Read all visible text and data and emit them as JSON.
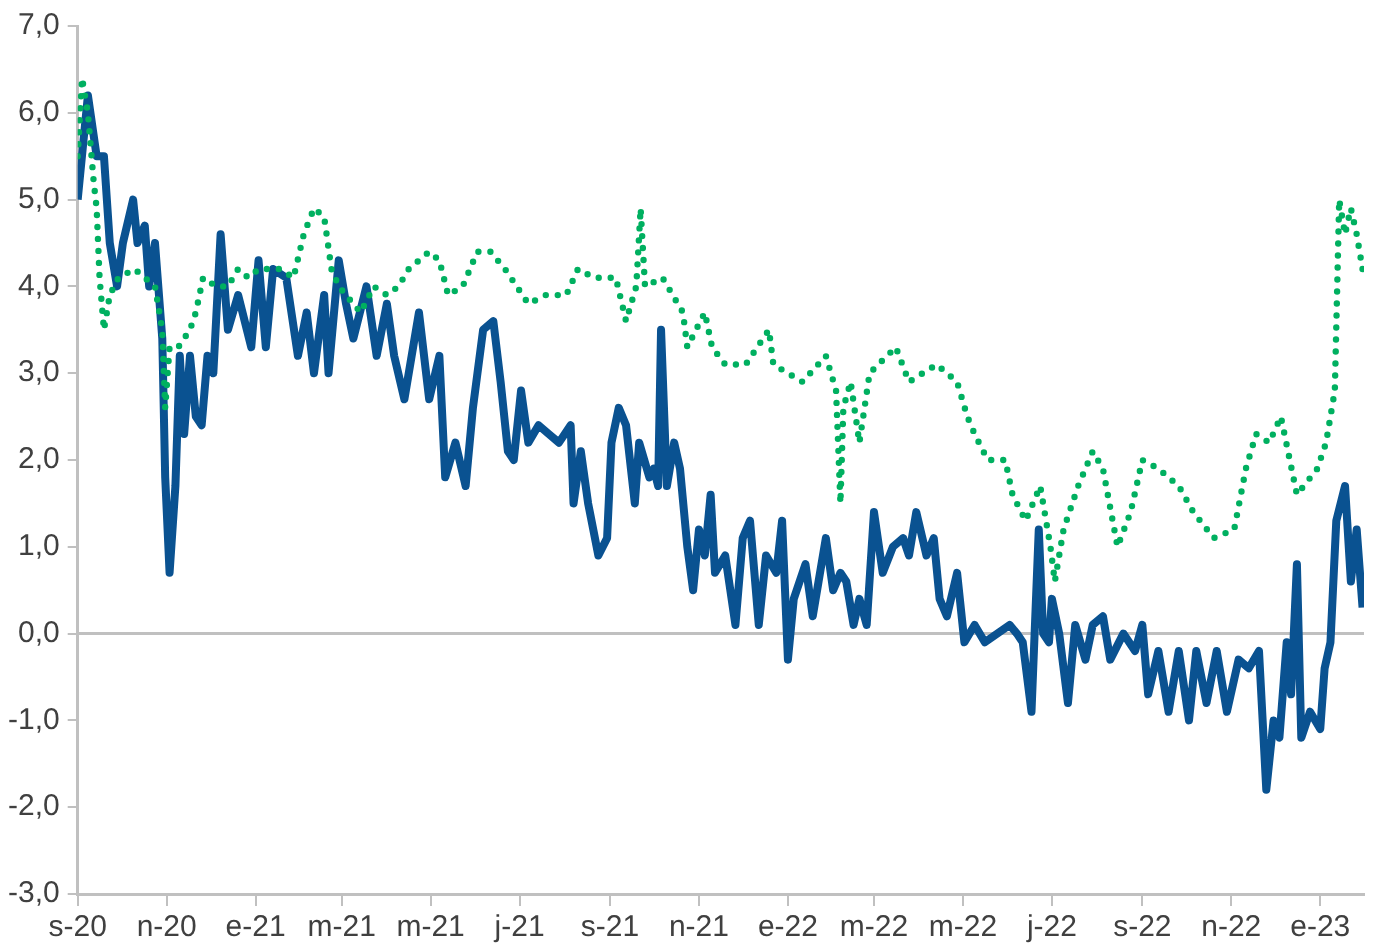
{
  "chart_data": {
    "type": "line",
    "marker": "none",
    "grid": false,
    "xlim": [
      "2020-09-01",
      "2023-01-31"
    ],
    "xticks": [
      {
        "value": "2020-09-01",
        "label": "s-20"
      },
      {
        "value": "2020-11-01",
        "label": "n-20"
      },
      {
        "value": "2021-01-01",
        "label": "e-21"
      },
      {
        "value": "2021-03-01",
        "label": "m-21"
      },
      {
        "value": "2021-05-01",
        "label": "m-21"
      },
      {
        "value": "2021-07-01",
        "label": "j-21"
      },
      {
        "value": "2021-09-01",
        "label": "s-21"
      },
      {
        "value": "2021-11-01",
        "label": "n-21"
      },
      {
        "value": "2022-01-01",
        "label": "e-22"
      },
      {
        "value": "2022-03-01",
        "label": "m-22"
      },
      {
        "value": "2022-05-01",
        "label": "m-22"
      },
      {
        "value": "2022-07-01",
        "label": "j-22"
      },
      {
        "value": "2022-09-01",
        "label": "s-22"
      },
      {
        "value": "2022-11-01",
        "label": "n-22"
      },
      {
        "value": "2023-01-01",
        "label": "e-23"
      }
    ],
    "ylim": [
      -3,
      7
    ],
    "ref_lines": [
      {
        "axis": "y",
        "value": 0,
        "color": "#c0c0c0",
        "line_style": "solid"
      }
    ],
    "yticks": [
      {
        "value": -3,
        "label": "-3,0"
      },
      {
        "value": -2,
        "label": "-2,0"
      },
      {
        "value": -1,
        "label": "-1,0"
      },
      {
        "value": 0,
        "label": "0,0"
      },
      {
        "value": 1,
        "label": "1,0"
      },
      {
        "value": 2,
        "label": "2,0"
      },
      {
        "value": 3,
        "label": "3,0"
      },
      {
        "value": 4,
        "label": "4,0"
      },
      {
        "value": 5,
        "label": "5,0"
      },
      {
        "value": 6,
        "label": "6,0"
      },
      {
        "value": 7,
        "label": "7,0"
      }
    ],
    "series": [
      {
        "color": "#00b060",
        "line_style": "dotted",
        "x": [
          "2020-09-01",
          "2020-09-04",
          "2020-09-08",
          "2020-09-12",
          "2020-09-14",
          "2020-09-16",
          "2020-09-19",
          "2020-09-23",
          "2020-09-29",
          "2020-10-10",
          "2020-10-17",
          "2020-10-24",
          "2020-10-29",
          "2020-10-31",
          "2020-11-03",
          "2020-11-09",
          "2020-11-17",
          "2020-11-21",
          "2020-11-26",
          "2020-12-05",
          "2020-12-13",
          "2020-12-20",
          "2020-12-27",
          "2021-01-03",
          "2021-01-18",
          "2021-01-27",
          "2021-02-03",
          "2021-02-10",
          "2021-02-17",
          "2021-02-22",
          "2021-02-27",
          "2021-03-04",
          "2021-03-14",
          "2021-03-23",
          "2021-04-01",
          "2021-04-09",
          "2021-04-16",
          "2021-04-30",
          "2021-05-07",
          "2021-05-13",
          "2021-05-23",
          "2021-06-02",
          "2021-06-11",
          "2021-06-21",
          "2021-07-07",
          "2021-07-19",
          "2021-08-02",
          "2021-08-10",
          "2021-08-21",
          "2021-09-05",
          "2021-09-12",
          "2021-09-19",
          "2021-09-22",
          "2021-09-25",
          "2021-10-07",
          "2021-10-21",
          "2021-10-24",
          "2021-11-05",
          "2021-11-10",
          "2021-11-19",
          "2021-12-03",
          "2021-12-19",
          "2021-12-22",
          "2022-01-11",
          "2022-01-27",
          "2022-02-03",
          "2022-02-06",
          "2022-02-08",
          "2022-02-13",
          "2022-02-19",
          "2022-02-26",
          "2022-03-16",
          "2022-03-25",
          "2022-04-13",
          "2022-04-27",
          "2022-05-04",
          "2022-05-09",
          "2022-05-18",
          "2022-05-30",
          "2022-06-04",
          "2022-06-13",
          "2022-06-23",
          "2022-06-30",
          "2022-07-03",
          "2022-07-09",
          "2022-07-19",
          "2022-07-29",
          "2022-08-05",
          "2022-08-15",
          "2022-08-24",
          "2022-09-01",
          "2022-09-12",
          "2022-09-26",
          "2022-10-06",
          "2022-10-20",
          "2022-11-03",
          "2022-11-11",
          "2022-11-18",
          "2022-11-27",
          "2022-12-05",
          "2022-12-16",
          "2022-12-30",
          "2023-01-05",
          "2023-01-11",
          "2023-01-14",
          "2023-01-18",
          "2023-01-22",
          "2023-01-26",
          "2023-01-30"
        ],
        "values": [
          5.5,
          6.4,
          6.0,
          5.2,
          4.9,
          4.1,
          3.5,
          3.9,
          4.1,
          4.2,
          4.1,
          4.0,
          3.5,
          2.6,
          3.3,
          3.3,
          3.5,
          3.7,
          4.1,
          4.0,
          4.0,
          4.2,
          4.1,
          4.2,
          4.2,
          4.1,
          4.6,
          4.9,
          4.8,
          4.2,
          4.0,
          3.9,
          3.7,
          4.0,
          3.9,
          4.0,
          4.2,
          4.4,
          4.3,
          3.9,
          4.0,
          4.4,
          4.4,
          4.2,
          3.8,
          3.9,
          3.9,
          4.2,
          4.1,
          4.1,
          3.6,
          4.0,
          4.9,
          4.0,
          4.1,
          3.7,
          3.3,
          3.7,
          3.3,
          3.1,
          3.1,
          3.5,
          3.1,
          2.9,
          3.2,
          2.8,
          1.5,
          2.6,
          2.9,
          2.2,
          3.0,
          3.3,
          2.9,
          3.1,
          2.9,
          2.5,
          2.3,
          2.0,
          2.0,
          1.6,
          1.3,
          1.7,
          1.0,
          0.6,
          1.2,
          1.7,
          2.1,
          1.9,
          1.0,
          1.4,
          2.0,
          1.9,
          1.7,
          1.4,
          1.1,
          1.2,
          1.9,
          2.3,
          2.2,
          2.5,
          1.6,
          1.9,
          2.2,
          2.8,
          5.0,
          4.6,
          4.9,
          4.6,
          4.2
        ]
      },
      {
        "color": "#0a5291",
        "line_style": "solid",
        "x": [
          "2020-09-01",
          "2020-09-08",
          "2020-09-14",
          "2020-09-19",
          "2020-09-23",
          "2020-09-28",
          "2020-10-02",
          "2020-10-09",
          "2020-10-12",
          "2020-10-17",
          "2020-10-20",
          "2020-10-24",
          "2020-10-29",
          "2020-10-31",
          "2020-11-03",
          "2020-11-07",
          "2020-11-10",
          "2020-11-13",
          "2020-11-17",
          "2020-11-21",
          "2020-11-25",
          "2020-11-29",
          "2020-12-03",
          "2020-12-08",
          "2020-12-13",
          "2020-12-20",
          "2020-12-29",
          "2021-01-03",
          "2021-01-08",
          "2021-01-13",
          "2021-01-22",
          "2021-01-30",
          "2021-02-05",
          "2021-02-10",
          "2021-02-17",
          "2021-02-20",
          "2021-02-27",
          "2021-03-04",
          "2021-03-09",
          "2021-03-18",
          "2021-03-25",
          "2021-04-01",
          "2021-04-06",
          "2021-04-13",
          "2021-04-23",
          "2021-04-30",
          "2021-05-07",
          "2021-05-11",
          "2021-05-18",
          "2021-05-25",
          "2021-05-30",
          "2021-06-06",
          "2021-06-13",
          "2021-06-18",
          "2021-06-23",
          "2021-06-27",
          "2021-07-02",
          "2021-07-07",
          "2021-07-14",
          "2021-07-21",
          "2021-07-28",
          "2021-08-05",
          "2021-08-07",
          "2021-08-12",
          "2021-08-17",
          "2021-08-24",
          "2021-08-30",
          "2021-09-02",
          "2021-09-07",
          "2021-09-12",
          "2021-09-18",
          "2021-09-21",
          "2021-09-28",
          "2021-10-01",
          "2021-10-04",
          "2021-10-06",
          "2021-10-10",
          "2021-10-15",
          "2021-10-19",
          "2021-10-24",
          "2021-10-28",
          "2021-11-01",
          "2021-11-05",
          "2021-11-09",
          "2021-11-12",
          "2021-11-19",
          "2021-11-26",
          "2021-12-01",
          "2021-12-06",
          "2021-12-12",
          "2021-12-17",
          "2021-12-24",
          "2021-12-28",
          "2022-01-01",
          "2022-01-05",
          "2022-01-13",
          "2022-01-18",
          "2022-01-22",
          "2022-01-27",
          "2022-02-01",
          "2022-02-06",
          "2022-02-10",
          "2022-02-15",
          "2022-02-19",
          "2022-02-24",
          "2022-03-01",
          "2022-03-07",
          "2022-03-14",
          "2022-03-21",
          "2022-03-25",
          "2022-03-30",
          "2022-04-06",
          "2022-04-11",
          "2022-04-15",
          "2022-04-20",
          "2022-04-27",
          "2022-05-02",
          "2022-05-09",
          "2022-05-16",
          "2022-06-02",
          "2022-06-07",
          "2022-06-11",
          "2022-06-17",
          "2022-06-22",
          "2022-06-25",
          "2022-06-29",
          "2022-07-01",
          "2022-07-06",
          "2022-07-12",
          "2022-07-17",
          "2022-07-24",
          "2022-07-29",
          "2022-08-05",
          "2022-08-10",
          "2022-08-19",
          "2022-08-27",
          "2022-09-01",
          "2022-09-05",
          "2022-09-12",
          "2022-09-19",
          "2022-09-26",
          "2022-10-03",
          "2022-10-08",
          "2022-10-15",
          "2022-10-22",
          "2022-10-29",
          "2022-11-06",
          "2022-11-13",
          "2022-11-20",
          "2022-11-25",
          "2022-11-30",
          "2022-12-04",
          "2022-12-09",
          "2022-12-12",
          "2022-12-16",
          "2022-12-19",
          "2022-12-25",
          "2023-01-01",
          "2023-01-04",
          "2023-01-08",
          "2023-01-12",
          "2023-01-18",
          "2023-01-22",
          "2023-01-26",
          "2023-01-30"
        ],
        "values": [
          5.0,
          6.2,
          5.5,
          5.5,
          4.5,
          4.0,
          4.5,
          5.0,
          4.5,
          4.7,
          4.0,
          4.5,
          3.4,
          1.8,
          0.7,
          1.7,
          3.2,
          2.3,
          3.2,
          2.5,
          2.4,
          3.2,
          3.0,
          4.6,
          3.5,
          3.9,
          3.3,
          4.3,
          3.3,
          4.2,
          4.1,
          3.2,
          3.7,
          3.0,
          3.9,
          3.0,
          4.3,
          3.8,
          3.4,
          4.0,
          3.2,
          3.8,
          3.2,
          2.7,
          3.7,
          2.7,
          3.2,
          1.8,
          2.2,
          1.7,
          2.6,
          3.5,
          3.6,
          2.9,
          2.1,
          2.0,
          2.8,
          2.2,
          2.4,
          2.3,
          2.2,
          2.4,
          1.5,
          2.1,
          1.5,
          0.9,
          1.1,
          2.2,
          2.6,
          2.4,
          1.5,
          2.2,
          1.8,
          1.9,
          1.7,
          3.5,
          1.7,
          2.2,
          1.9,
          1.0,
          0.5,
          1.2,
          0.9,
          1.6,
          0.7,
          0.9,
          0.1,
          1.1,
          1.3,
          0.1,
          0.9,
          0.7,
          1.3,
          -0.3,
          0.4,
          0.8,
          0.2,
          0.6,
          1.1,
          0.5,
          0.7,
          0.6,
          0.1,
          0.4,
          0.1,
          1.4,
          0.7,
          1.0,
          1.1,
          0.9,
          1.4,
          0.9,
          1.1,
          0.4,
          0.2,
          0.7,
          -0.1,
          0.1,
          -0.1,
          0.1,
          0.0,
          -0.1,
          -0.9,
          1.2,
          0.0,
          -0.1,
          0.4,
          0.0,
          -0.8,
          0.1,
          -0.3,
          0.1,
          0.2,
          -0.3,
          0.0,
          -0.2,
          0.1,
          -0.7,
          -0.2,
          -0.9,
          -0.2,
          -1.0,
          -0.2,
          -0.8,
          -0.2,
          -0.9,
          -0.3,
          -0.4,
          -0.2,
          -1.8,
          -1.0,
          -1.2,
          -0.1,
          -0.7,
          0.8,
          -1.2,
          -0.9,
          -1.1,
          -0.4,
          -0.1,
          1.3,
          1.7,
          0.6,
          1.2,
          0.3
        ]
      }
    ]
  }
}
